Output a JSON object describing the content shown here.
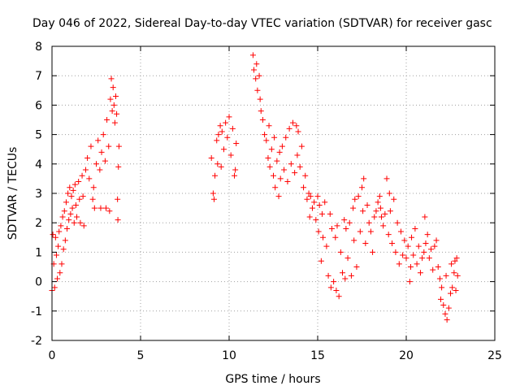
{
  "chart_data": {
    "type": "scatter",
    "title": "Day 046 of 2022, Sidereal Day-to-day VTEC variation (SDTVAR) for receiver gasc",
    "xlabel": "GPS time / hours",
    "ylabel": "SDTVAR / TECUs",
    "xlim": [
      0,
      25
    ],
    "ylim": [
      -2,
      8
    ],
    "xticks": [
      "0",
      "5",
      "10",
      "15",
      "20",
      "25"
    ],
    "yticks": [
      "-2",
      "-1",
      "0",
      "1",
      "2",
      "3",
      "4",
      "5",
      "6",
      "7",
      "8"
    ],
    "grid": true,
    "marker": "+",
    "series": [
      {
        "name": "SDTVAR",
        "color": "#ff0000",
        "points": [
          [
            0.0,
            -0.3
          ],
          [
            0.05,
            1.6
          ],
          [
            0.1,
            0.6
          ],
          [
            0.15,
            -0.2
          ],
          [
            0.2,
            1.5
          ],
          [
            0.25,
            0.9
          ],
          [
            0.3,
            0.1
          ],
          [
            0.35,
            1.2
          ],
          [
            0.4,
            1.7
          ],
          [
            0.45,
            0.3
          ],
          [
            0.5,
            1.9
          ],
          [
            0.55,
            0.6
          ],
          [
            0.6,
            2.2
          ],
          [
            0.65,
            1.1
          ],
          [
            0.7,
            2.4
          ],
          [
            0.75,
            1.4
          ],
          [
            0.8,
            2.7
          ],
          [
            0.85,
            1.8
          ],
          [
            0.9,
            3.0
          ],
          [
            0.95,
            2.1
          ],
          [
            1.0,
            3.2
          ],
          [
            1.05,
            2.3
          ],
          [
            1.1,
            2.9
          ],
          [
            1.15,
            2.5
          ],
          [
            1.2,
            3.1
          ],
          [
            1.25,
            2.0
          ],
          [
            1.3,
            3.3
          ],
          [
            1.35,
            2.6
          ],
          [
            1.4,
            2.2
          ],
          [
            1.5,
            3.4
          ],
          [
            1.55,
            2.8
          ],
          [
            1.6,
            2.0
          ],
          [
            1.7,
            3.6
          ],
          [
            1.75,
            2.9
          ],
          [
            1.8,
            1.9
          ],
          [
            1.9,
            3.8
          ],
          [
            2.0,
            4.2
          ],
          [
            2.1,
            3.5
          ],
          [
            2.2,
            4.6
          ],
          [
            2.3,
            2.8
          ],
          [
            2.35,
            3.2
          ],
          [
            2.4,
            2.5
          ],
          [
            2.5,
            4.0
          ],
          [
            2.6,
            4.8
          ],
          [
            2.7,
            3.8
          ],
          [
            2.75,
            2.5
          ],
          [
            2.8,
            4.4
          ],
          [
            2.9,
            5.0
          ],
          [
            3.0,
            4.1
          ],
          [
            3.05,
            2.5
          ],
          [
            3.1,
            5.5
          ],
          [
            3.2,
            4.6
          ],
          [
            3.25,
            2.4
          ],
          [
            3.3,
            6.2
          ],
          [
            3.35,
            6.9
          ],
          [
            3.4,
            5.8
          ],
          [
            3.45,
            6.6
          ],
          [
            3.5,
            6.0
          ],
          [
            3.55,
            5.4
          ],
          [
            3.6,
            6.3
          ],
          [
            3.65,
            5.7
          ],
          [
            3.7,
            2.8
          ],
          [
            3.72,
            2.1
          ],
          [
            3.75,
            3.9
          ],
          [
            3.78,
            4.6
          ],
          [
            9.0,
            4.2
          ],
          [
            9.1,
            3.0
          ],
          [
            9.15,
            2.8
          ],
          [
            9.2,
            3.6
          ],
          [
            9.3,
            4.8
          ],
          [
            9.35,
            4.0
          ],
          [
            9.4,
            5.0
          ],
          [
            9.5,
            5.3
          ],
          [
            9.55,
            3.9
          ],
          [
            9.6,
            5.1
          ],
          [
            9.7,
            4.5
          ],
          [
            9.8,
            5.4
          ],
          [
            9.9,
            4.9
          ],
          [
            10.0,
            5.6
          ],
          [
            10.1,
            4.3
          ],
          [
            10.2,
            5.2
          ],
          [
            10.3,
            3.6
          ],
          [
            10.35,
            3.8
          ],
          [
            10.4,
            4.7
          ],
          [
            11.35,
            7.7
          ],
          [
            11.4,
            7.2
          ],
          [
            11.5,
            6.9
          ],
          [
            11.55,
            7.4
          ],
          [
            11.6,
            6.5
          ],
          [
            11.7,
            7.0
          ],
          [
            11.75,
            6.2
          ],
          [
            11.8,
            5.8
          ],
          [
            11.9,
            5.5
          ],
          [
            12.0,
            5.0
          ],
          [
            12.1,
            4.8
          ],
          [
            12.2,
            4.2
          ],
          [
            12.25,
            5.3
          ],
          [
            12.3,
            3.9
          ],
          [
            12.4,
            4.5
          ],
          [
            12.5,
            3.6
          ],
          [
            12.55,
            4.9
          ],
          [
            12.6,
            3.2
          ],
          [
            12.7,
            4.1
          ],
          [
            12.8,
            2.9
          ],
          [
            12.85,
            4.4
          ],
          [
            12.9,
            3.5
          ],
          [
            13.0,
            4.6
          ],
          [
            13.1,
            3.8
          ],
          [
            13.2,
            4.9
          ],
          [
            13.3,
            3.4
          ],
          [
            13.4,
            5.2
          ],
          [
            13.5,
            4.0
          ],
          [
            13.6,
            5.4
          ],
          [
            13.7,
            3.7
          ],
          [
            13.8,
            5.3
          ],
          [
            13.85,
            4.3
          ],
          [
            13.9,
            5.1
          ],
          [
            14.0,
            3.9
          ],
          [
            14.1,
            4.6
          ],
          [
            14.2,
            3.2
          ],
          [
            14.3,
            3.6
          ],
          [
            14.4,
            2.8
          ],
          [
            14.5,
            3.0
          ],
          [
            14.55,
            2.2
          ],
          [
            14.6,
            2.9
          ],
          [
            14.7,
            2.5
          ],
          [
            14.8,
            2.7
          ],
          [
            14.9,
            2.1
          ],
          [
            15.0,
            2.9
          ],
          [
            15.05,
            1.7
          ],
          [
            15.1,
            2.6
          ],
          [
            15.2,
            0.7
          ],
          [
            15.25,
            2.3
          ],
          [
            15.3,
            1.5
          ],
          [
            15.4,
            2.7
          ],
          [
            15.5,
            1.2
          ],
          [
            15.6,
            0.2
          ],
          [
            15.7,
            2.3
          ],
          [
            15.75,
            -0.2
          ],
          [
            15.8,
            1.8
          ],
          [
            15.9,
            0.0
          ],
          [
            16.0,
            1.5
          ],
          [
            16.05,
            -0.3
          ],
          [
            16.1,
            1.9
          ],
          [
            16.2,
            -0.5
          ],
          [
            16.3,
            1.0
          ],
          [
            16.4,
            0.3
          ],
          [
            16.5,
            2.1
          ],
          [
            16.55,
            0.1
          ],
          [
            16.6,
            1.8
          ],
          [
            16.7,
            0.8
          ],
          [
            16.8,
            2.0
          ],
          [
            16.9,
            0.2
          ],
          [
            17.0,
            2.5
          ],
          [
            17.05,
            1.4
          ],
          [
            17.1,
            2.8
          ],
          [
            17.2,
            0.5
          ],
          [
            17.3,
            2.9
          ],
          [
            17.4,
            1.7
          ],
          [
            17.5,
            3.2
          ],
          [
            17.55,
            2.4
          ],
          [
            17.6,
            3.5
          ],
          [
            17.7,
            1.3
          ],
          [
            17.8,
            2.6
          ],
          [
            17.9,
            2.0
          ],
          [
            18.0,
            1.7
          ],
          [
            18.1,
            1.0
          ],
          [
            18.2,
            2.2
          ],
          [
            18.3,
            2.4
          ],
          [
            18.4,
            2.7
          ],
          [
            18.5,
            2.9
          ],
          [
            18.55,
            2.5
          ],
          [
            18.6,
            2.2
          ],
          [
            18.7,
            1.9
          ],
          [
            18.8,
            2.3
          ],
          [
            18.9,
            3.5
          ],
          [
            19.0,
            1.6
          ],
          [
            19.05,
            3.0
          ],
          [
            19.1,
            2.4
          ],
          [
            19.2,
            1.3
          ],
          [
            19.3,
            2.8
          ],
          [
            19.4,
            1.0
          ],
          [
            19.5,
            2.0
          ],
          [
            19.6,
            0.6
          ],
          [
            19.7,
            1.7
          ],
          [
            19.8,
            0.9
          ],
          [
            19.9,
            1.4
          ],
          [
            20.0,
            0.8
          ],
          [
            20.1,
            1.2
          ],
          [
            20.2,
            0.0
          ],
          [
            20.25,
            0.5
          ],
          [
            20.3,
            1.5
          ],
          [
            20.4,
            0.9
          ],
          [
            20.5,
            1.8
          ],
          [
            20.6,
            0.6
          ],
          [
            20.7,
            1.2
          ],
          [
            20.8,
            0.3
          ],
          [
            20.9,
            0.8
          ],
          [
            21.0,
            1.0
          ],
          [
            21.05,
            2.2
          ],
          [
            21.1,
            1.3
          ],
          [
            21.2,
            1.6
          ],
          [
            21.3,
            0.8
          ],
          [
            21.4,
            1.1
          ],
          [
            21.5,
            0.4
          ],
          [
            21.6,
            1.2
          ],
          [
            21.7,
            1.4
          ],
          [
            21.8,
            0.5
          ],
          [
            21.9,
            0.1
          ],
          [
            21.95,
            -0.6
          ],
          [
            22.0,
            -0.2
          ],
          [
            22.1,
            -0.8
          ],
          [
            22.2,
            -1.1
          ],
          [
            22.25,
            0.2
          ],
          [
            22.3,
            -1.3
          ],
          [
            22.4,
            -0.9
          ],
          [
            22.5,
            -0.4
          ],
          [
            22.55,
            0.6
          ],
          [
            22.6,
            -0.2
          ],
          [
            22.7,
            0.3
          ],
          [
            22.75,
            0.7
          ],
          [
            22.8,
            -0.3
          ],
          [
            22.85,
            0.8
          ],
          [
            22.9,
            0.2
          ]
        ]
      }
    ]
  }
}
